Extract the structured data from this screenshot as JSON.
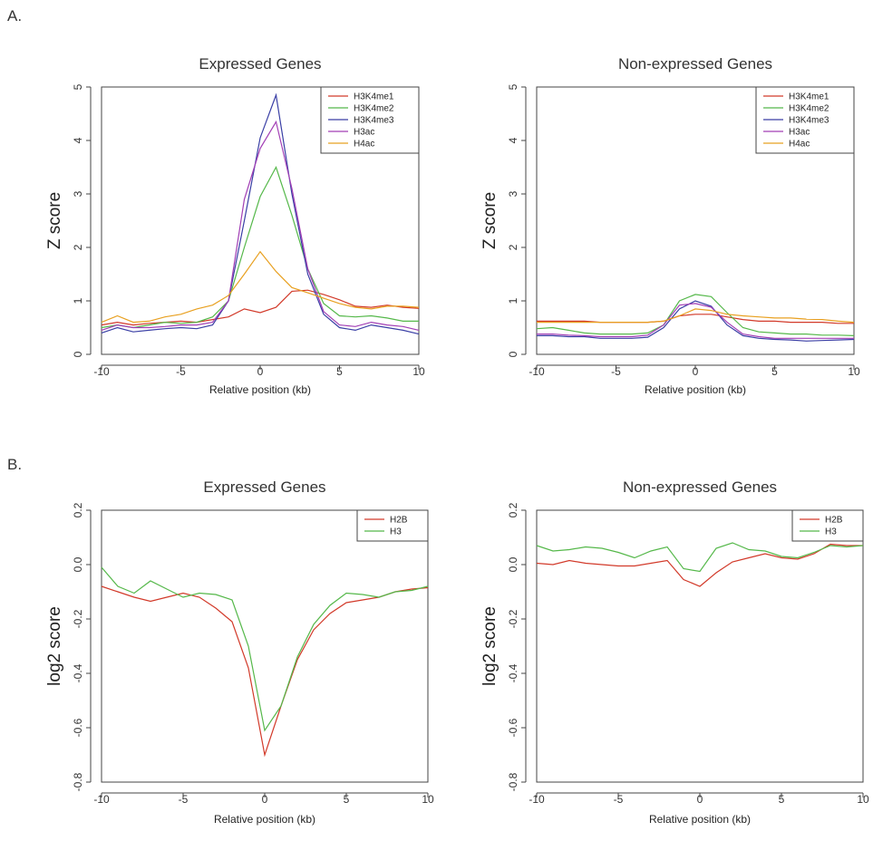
{
  "panels": {
    "a": "A.",
    "b": "B."
  },
  "chart_data": [
    {
      "id": "a1",
      "type": "line",
      "title": "Expressed Genes",
      "xlabel": "Relative position (kb)",
      "ylabel": "Z score",
      "xlim": [
        -10,
        10
      ],
      "ylim": [
        0,
        5
      ],
      "xticks": [
        -10,
        -5,
        0,
        5,
        10
      ],
      "yticks": [
        0,
        1,
        2,
        3,
        4,
        5
      ],
      "grid": false,
      "legend_position": "top-right",
      "x": [
        -10,
        -9,
        -8,
        -7,
        -6,
        -5,
        -4,
        -3,
        -2,
        -1,
        0,
        1,
        2,
        3,
        4,
        5,
        6,
        7,
        8,
        9,
        10
      ],
      "series": [
        {
          "name": "H3K4me1",
          "color": "#d23a2a",
          "values": [
            0.55,
            0.6,
            0.55,
            0.58,
            0.6,
            0.62,
            0.6,
            0.65,
            0.7,
            0.85,
            0.78,
            0.88,
            1.18,
            1.2,
            1.12,
            1.02,
            0.9,
            0.88,
            0.92,
            0.88,
            0.86
          ]
        },
        {
          "name": "H3K4me2",
          "color": "#55b84a",
          "values": [
            0.5,
            0.55,
            0.5,
            0.55,
            0.6,
            0.58,
            0.6,
            0.7,
            1.0,
            2.0,
            2.95,
            3.5,
            2.6,
            1.6,
            0.95,
            0.72,
            0.7,
            0.72,
            0.68,
            0.62,
            0.62
          ]
        },
        {
          "name": "H3K4me3",
          "color": "#3a3fa5",
          "values": [
            0.4,
            0.5,
            0.42,
            0.45,
            0.48,
            0.5,
            0.48,
            0.55,
            1.0,
            2.5,
            4.05,
            4.85,
            3.0,
            1.5,
            0.75,
            0.5,
            0.45,
            0.55,
            0.5,
            0.45,
            0.38
          ]
        },
        {
          "name": "H3ac",
          "color": "#a23fb5",
          "values": [
            0.45,
            0.55,
            0.5,
            0.5,
            0.52,
            0.55,
            0.55,
            0.6,
            1.0,
            2.9,
            3.85,
            4.35,
            3.1,
            1.6,
            0.8,
            0.55,
            0.52,
            0.6,
            0.55,
            0.52,
            0.45
          ]
        },
        {
          "name": "H4ac",
          "color": "#e8a020",
          "values": [
            0.6,
            0.72,
            0.6,
            0.62,
            0.7,
            0.75,
            0.85,
            0.92,
            1.1,
            1.5,
            1.92,
            1.55,
            1.25,
            1.15,
            1.05,
            0.95,
            0.88,
            0.85,
            0.9,
            0.9,
            0.88
          ]
        }
      ]
    },
    {
      "id": "a2",
      "type": "line",
      "title": "Non-expressed Genes",
      "xlabel": "Relative position (kb)",
      "ylabel": "Z score",
      "xlim": [
        -10,
        10
      ],
      "ylim": [
        0,
        5
      ],
      "xticks": [
        -10,
        -5,
        0,
        5,
        10
      ],
      "yticks": [
        0,
        1,
        2,
        3,
        4,
        5
      ],
      "grid": false,
      "legend_position": "top-right",
      "x": [
        -10,
        -9,
        -8,
        -7,
        -6,
        -5,
        -4,
        -3,
        -2,
        -1,
        0,
        1,
        2,
        3,
        4,
        5,
        6,
        7,
        8,
        9,
        10
      ],
      "series": [
        {
          "name": "H3K4me1",
          "color": "#d23a2a",
          "values": [
            0.62,
            0.62,
            0.62,
            0.62,
            0.6,
            0.6,
            0.6,
            0.6,
            0.62,
            0.72,
            0.75,
            0.75,
            0.7,
            0.65,
            0.62,
            0.62,
            0.6,
            0.6,
            0.6,
            0.58,
            0.58
          ]
        },
        {
          "name": "H3K4me2",
          "color": "#55b84a",
          "values": [
            0.48,
            0.5,
            0.45,
            0.4,
            0.38,
            0.38,
            0.38,
            0.4,
            0.55,
            1.0,
            1.12,
            1.08,
            0.78,
            0.5,
            0.42,
            0.4,
            0.38,
            0.38,
            0.36,
            0.36,
            0.35
          ]
        },
        {
          "name": "H3K4me3",
          "color": "#3a3fa5",
          "values": [
            0.35,
            0.35,
            0.33,
            0.33,
            0.3,
            0.3,
            0.3,
            0.32,
            0.5,
            0.85,
            1.0,
            0.9,
            0.55,
            0.35,
            0.3,
            0.28,
            0.27,
            0.25,
            0.26,
            0.27,
            0.28
          ]
        },
        {
          "name": "H3ac",
          "color": "#a23fb5",
          "values": [
            0.38,
            0.38,
            0.36,
            0.35,
            0.33,
            0.33,
            0.33,
            0.36,
            0.55,
            0.92,
            0.95,
            0.88,
            0.6,
            0.38,
            0.33,
            0.3,
            0.3,
            0.3,
            0.3,
            0.3,
            0.3
          ]
        },
        {
          "name": "H4ac",
          "color": "#e8a020",
          "values": [
            0.6,
            0.6,
            0.6,
            0.6,
            0.6,
            0.6,
            0.6,
            0.6,
            0.62,
            0.72,
            0.85,
            0.82,
            0.75,
            0.72,
            0.7,
            0.68,
            0.68,
            0.66,
            0.65,
            0.62,
            0.6
          ]
        }
      ]
    },
    {
      "id": "b1",
      "type": "line",
      "title": "Expressed Genes",
      "xlabel": "Relative position (kb)",
      "ylabel": "log2 score",
      "xlim": [
        -10,
        10
      ],
      "ylim": [
        -0.8,
        0.2
      ],
      "xticks": [
        -10,
        -5,
        0,
        5,
        10
      ],
      "yticks": [
        -0.8,
        -0.6,
        -0.4,
        -0.2,
        0.0,
        0.2
      ],
      "yticklabels": [
        "-0.8",
        "-0.6",
        "-0.4",
        "-0.2",
        "0.0",
        "0.2"
      ],
      "grid": false,
      "legend_position": "top-right",
      "x": [
        -10,
        -9,
        -8,
        -7,
        -6,
        -5,
        -4,
        -3,
        -2,
        -1,
        0,
        1,
        2,
        3,
        4,
        5,
        6,
        7,
        8,
        9,
        10
      ],
      "series": [
        {
          "name": "H2B",
          "color": "#d23a2a",
          "values": [
            -0.08,
            -0.1,
            -0.12,
            -0.135,
            -0.12,
            -0.105,
            -0.12,
            -0.16,
            -0.21,
            -0.38,
            -0.7,
            -0.52,
            -0.35,
            -0.24,
            -0.18,
            -0.14,
            -0.13,
            -0.12,
            -0.1,
            -0.09,
            -0.085
          ]
        },
        {
          "name": "H3",
          "color": "#55b84a",
          "values": [
            -0.01,
            -0.08,
            -0.105,
            -0.06,
            -0.09,
            -0.12,
            -0.105,
            -0.11,
            -0.13,
            -0.3,
            -0.61,
            -0.52,
            -0.34,
            -0.22,
            -0.15,
            -0.105,
            -0.11,
            -0.12,
            -0.1,
            -0.095,
            -0.08
          ]
        }
      ]
    },
    {
      "id": "b2",
      "type": "line",
      "title": "Non-expressed Genes",
      "xlabel": "Relative position (kb)",
      "ylabel": "log2 score",
      "xlim": [
        -10,
        10
      ],
      "ylim": [
        -0.8,
        0.2
      ],
      "xticks": [
        -10,
        -5,
        0,
        5,
        10
      ],
      "yticks": [
        -0.8,
        -0.6,
        -0.4,
        -0.2,
        0.0,
        0.2
      ],
      "yticklabels": [
        "-0.8",
        "-0.6",
        "-0.4",
        "-0.2",
        "0.0",
        "0.2"
      ],
      "grid": false,
      "legend_position": "top-right",
      "x": [
        -10,
        -9,
        -8,
        -7,
        -6,
        -5,
        -4,
        -3,
        -2,
        -1,
        0,
        1,
        2,
        3,
        4,
        5,
        6,
        7,
        8,
        9,
        10
      ],
      "series": [
        {
          "name": "H2B",
          "color": "#d23a2a",
          "values": [
            0.005,
            0.0,
            0.015,
            0.005,
            0.0,
            -0.005,
            -0.005,
            0.005,
            0.015,
            -0.055,
            -0.08,
            -0.03,
            0.01,
            0.025,
            0.04,
            0.025,
            0.02,
            0.04,
            0.075,
            0.07,
            0.07
          ]
        },
        {
          "name": "H3",
          "color": "#55b84a",
          "values": [
            0.07,
            0.05,
            0.055,
            0.065,
            0.06,
            0.045,
            0.025,
            0.05,
            0.065,
            -0.015,
            -0.025,
            0.06,
            0.08,
            0.055,
            0.05,
            0.03,
            0.025,
            0.045,
            0.07,
            0.065,
            0.07
          ]
        }
      ]
    }
  ]
}
